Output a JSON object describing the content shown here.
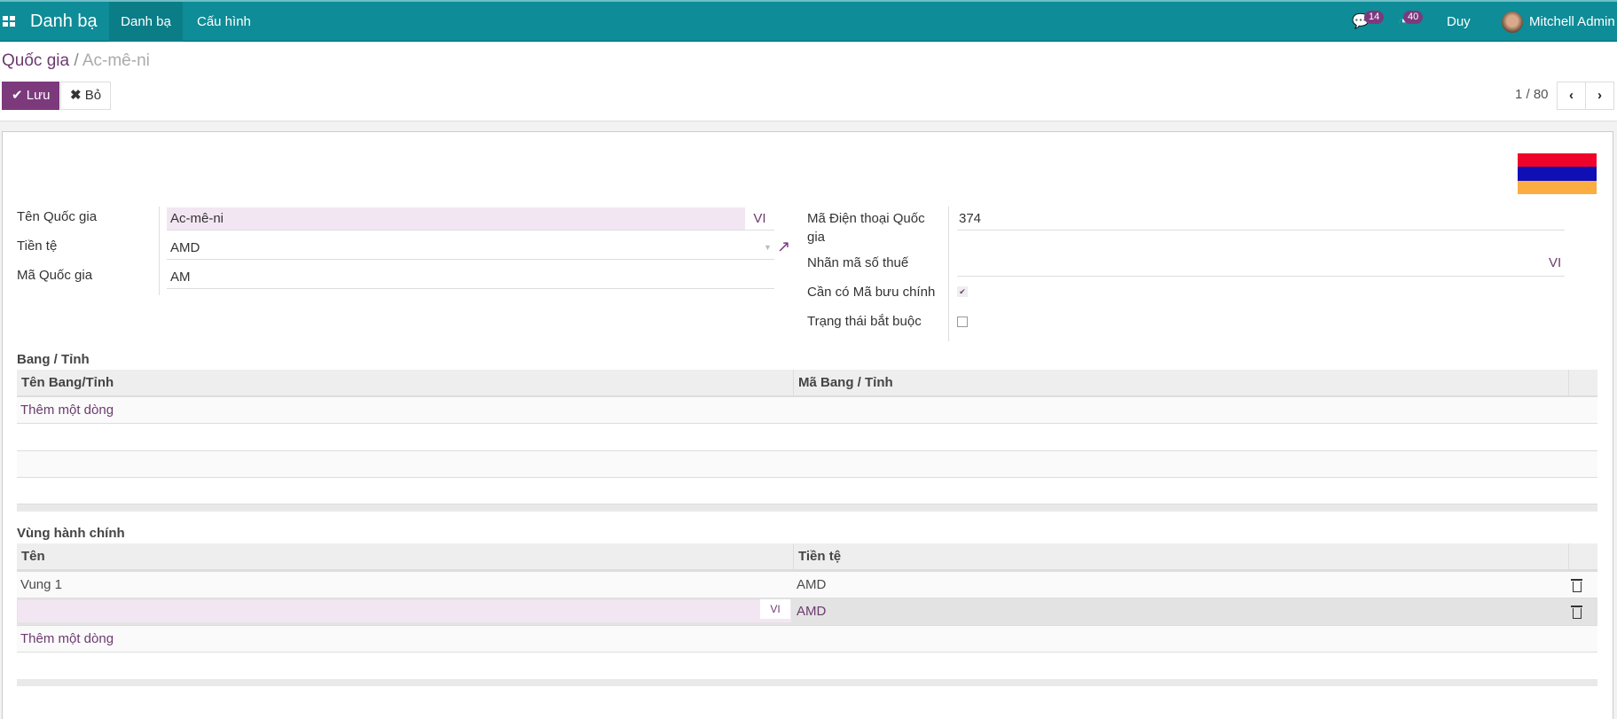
{
  "navbar": {
    "app_title": "Danh bạ",
    "menus": [
      "Danh bạ",
      "Cấu hình"
    ],
    "messages_count": "14",
    "activities_count": "40",
    "company": "Duy",
    "user": "Mitchell Admin",
    "color": "#0e8c97"
  },
  "breadcrumb": {
    "parent": "Quốc gia",
    "separator": "/",
    "current": "Ac-mê-ni"
  },
  "toolbar": {
    "save_label": "Lưu",
    "discard_label": "Bỏ",
    "pager": "1 / 80"
  },
  "form": {
    "country_name_label": "Tên Quốc gia",
    "country_name": "Ac-mê-ni",
    "lang": "VI",
    "currency_label": "Tiền tệ",
    "currency": "AMD",
    "code_label": "Mã Quốc gia",
    "code": "AM",
    "phone_code_label": "Mã Điện thoại Quốc gia",
    "phone_code": "374",
    "vat_label": "Nhãn mã số thuế",
    "vat_lang": "VI",
    "zip_required_label": "Cần có Mã bưu chính",
    "zip_required": true,
    "state_required_label": "Trạng thái bắt buộc",
    "state_required": false,
    "flag_colors": [
      "#f0032a",
      "#0f0fb5",
      "#fbad41"
    ]
  },
  "states": {
    "title": "Bang / Tỉnh",
    "columns": [
      "Tên Bang/Tỉnh",
      "Mã Bang / Tỉnh"
    ],
    "add_line": "Thêm một dòng"
  },
  "regions": {
    "title": "Vùng hành chính",
    "columns": [
      "Tên",
      "Tiền tệ"
    ],
    "rows": [
      {
        "name": "Vung 1",
        "currency": "AMD"
      },
      {
        "name": "",
        "currency": "AMD",
        "lang": "VI"
      }
    ],
    "add_line": "Thêm một dòng"
  }
}
